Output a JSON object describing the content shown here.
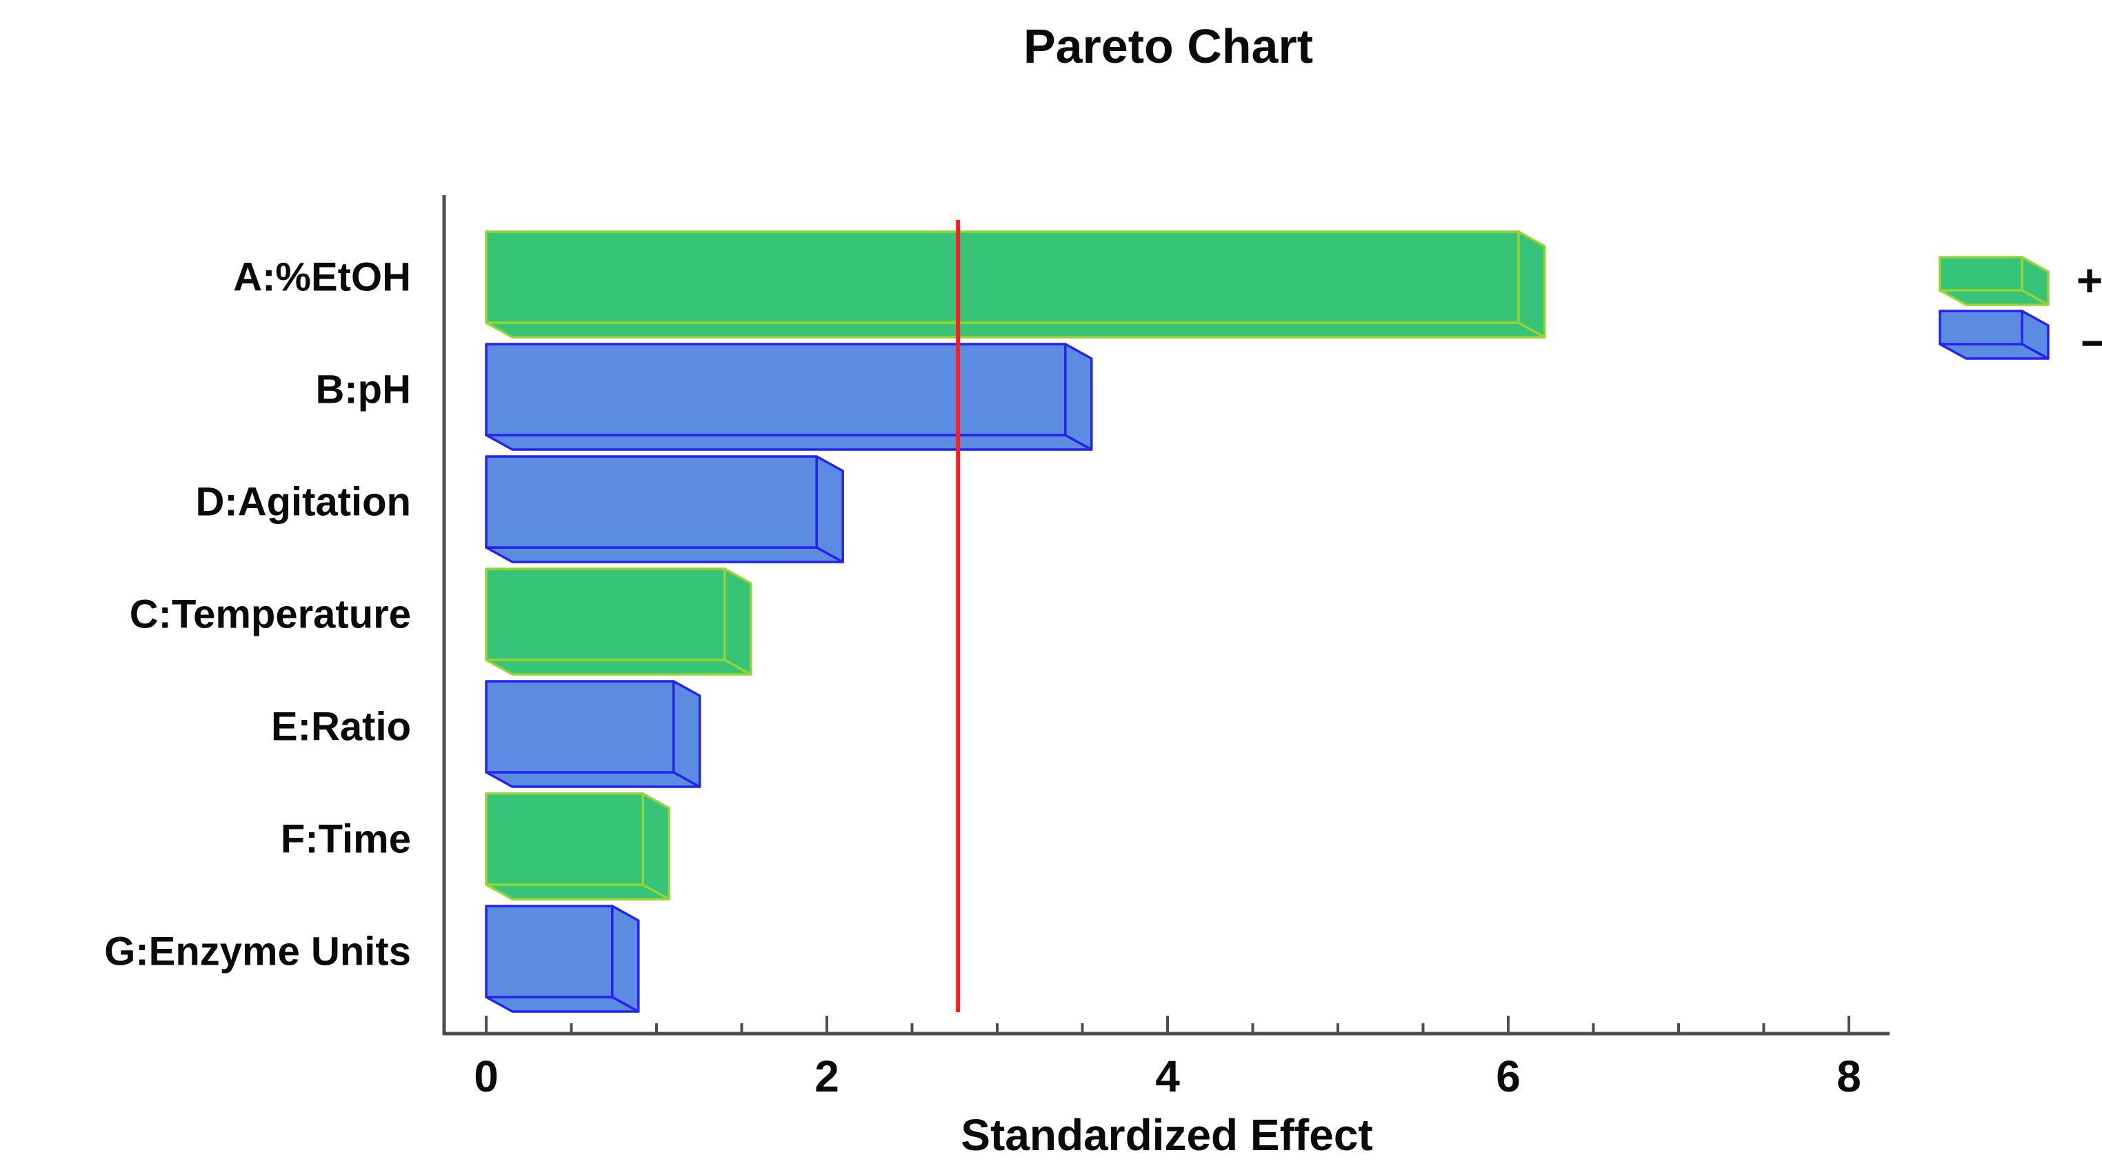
{
  "chart_data": {
    "type": "bar",
    "orientation": "horizontal",
    "style": "3d-pareto",
    "title": "Pareto Chart",
    "xlabel": "Standardized Effect",
    "categories": [
      "A:%EtOH",
      "B:pH",
      "D:Agitation",
      "C:Temperature",
      "E:Ratio",
      "F:Time",
      "G:Enzyme Units"
    ],
    "series": [
      {
        "name": "Standardized Effect",
        "values": [
          6.06,
          3.4,
          1.94,
          1.4,
          1.1,
          0.92,
          0.74
        ]
      }
    ],
    "signs": [
      "+",
      "-",
      "-",
      "+",
      "-",
      "+",
      "-"
    ],
    "reference_line": {
      "value": 2.77,
      "color": "#fa1e1e"
    },
    "xlim": [
      0,
      8.2
    ],
    "xticks": [
      0,
      2,
      4,
      6,
      8
    ],
    "minor_tick_step": 0.5,
    "grid": "off",
    "legend_position": "top-right",
    "legend": [
      {
        "label": "+",
        "fill": "#38c478",
        "edge": "#94d434"
      },
      {
        "label": "−",
        "fill": "#5c8ce2",
        "edge": "#2323ee"
      }
    ],
    "colors": {
      "axis": "#4d4d4d",
      "text": "#0a0a0a",
      "background": "#ffffff"
    }
  }
}
